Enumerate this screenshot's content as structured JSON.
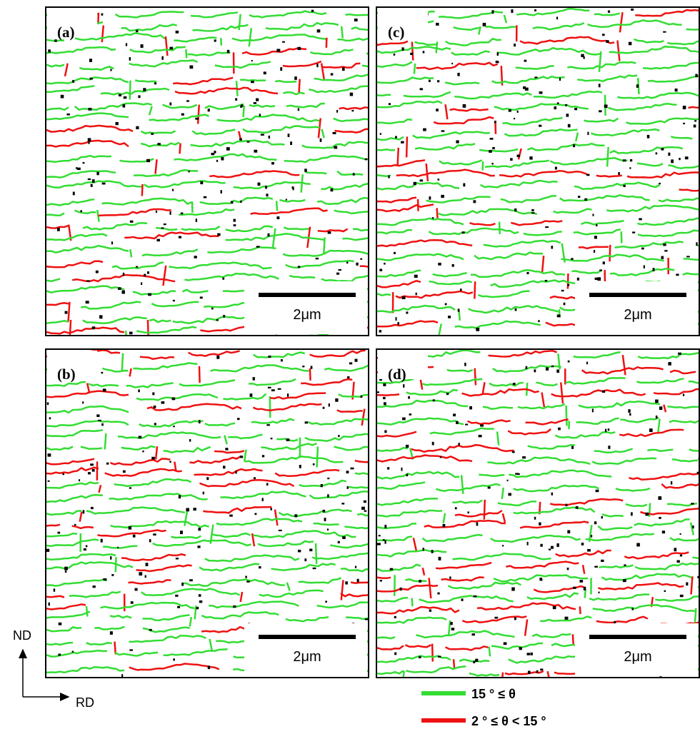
{
  "panels": [
    {
      "label": "(a)",
      "scale_bar": "2μm"
    },
    {
      "label": "(b)",
      "scale_bar": "2μm"
    },
    {
      "label": "(c)",
      "scale_bar": "2μm"
    },
    {
      "label": "(d)",
      "scale_bar": "2μm"
    }
  ],
  "axes": {
    "vertical": "ND",
    "horizontal": "RD"
  },
  "legend": [
    {
      "label": "15 ° ≤ θ",
      "color": "#33dd33"
    },
    {
      "label": "2 ° ≤ θ < 15 °",
      "color": "#ee1111"
    }
  ]
}
